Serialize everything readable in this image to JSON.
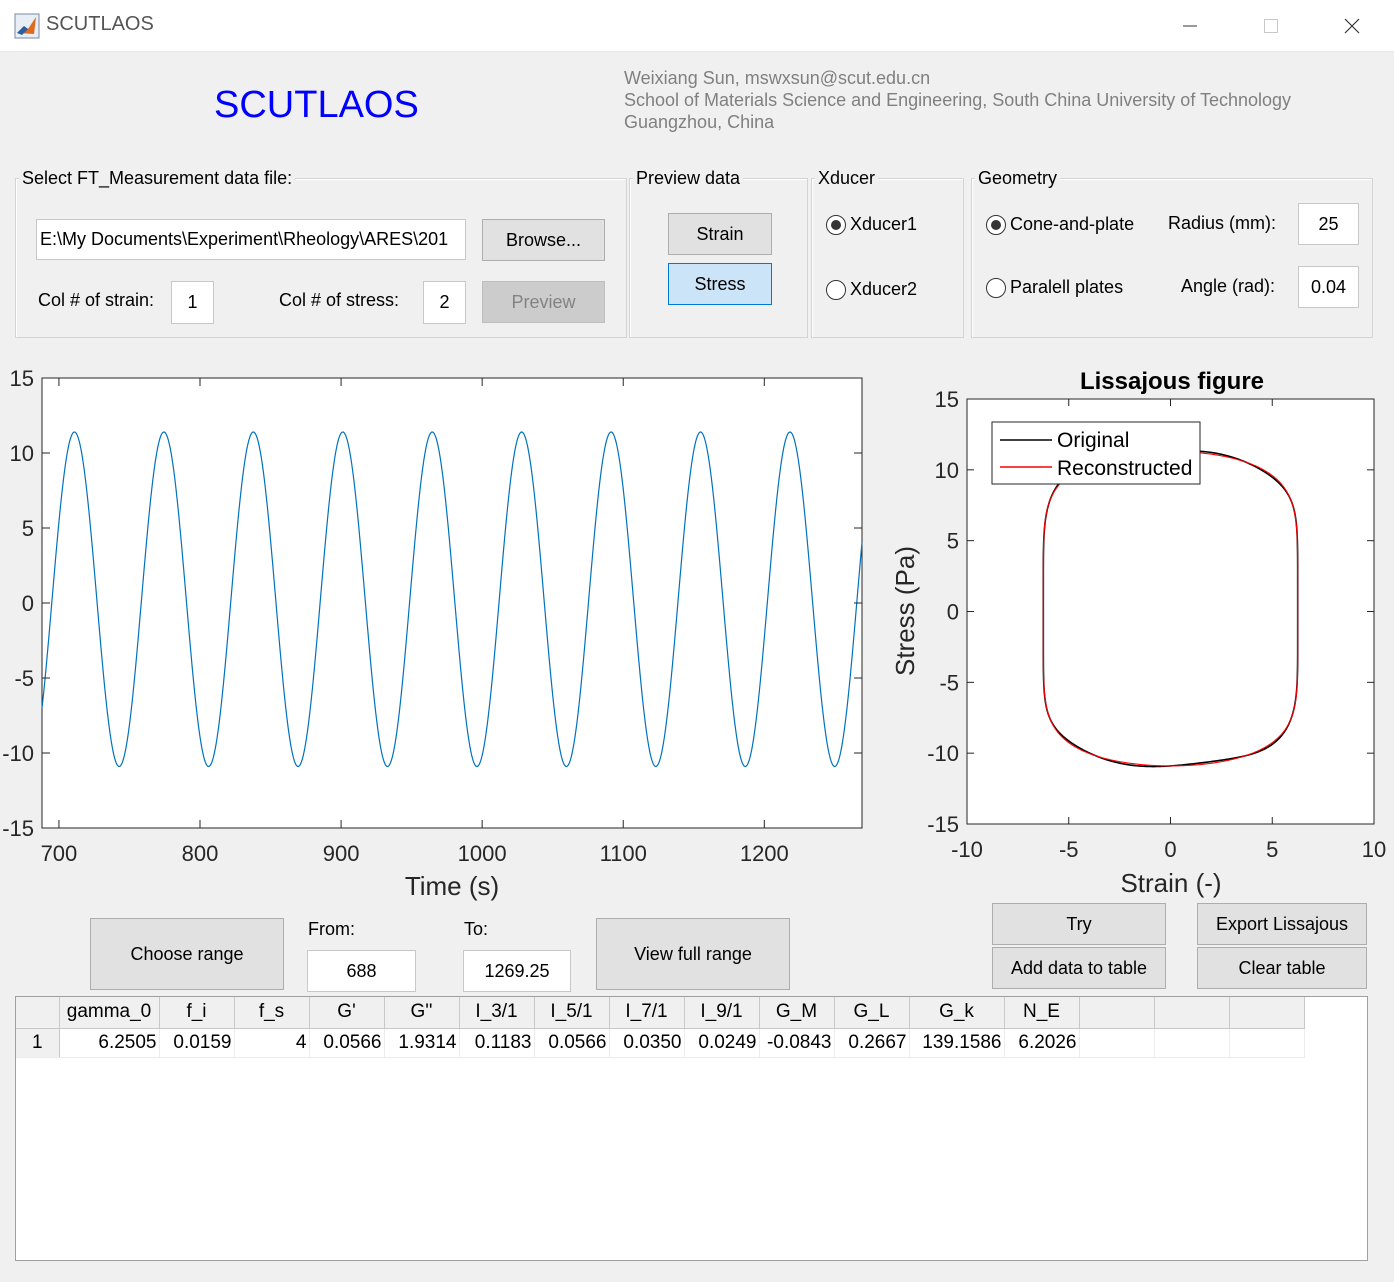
{
  "window": {
    "title": "SCUTLAOS"
  },
  "header": {
    "app_name": "SCUTLAOS",
    "author_line1": "Weixiang Sun, mswxsun@scut.edu.cn",
    "author_line2": "School of Materials Science and Engineering, South China University of Technology",
    "author_line3": "Guangzhou, China"
  },
  "file_panel": {
    "title": "Select FT_Measurement data file:",
    "path_value": "E:\\My Documents\\Experiment\\Rheology\\ARES\\201",
    "browse_label": "Browse...",
    "strain_col_label": "Col # of strain:",
    "strain_col_value": "1",
    "stress_col_label": "Col # of stress:",
    "stress_col_value": "2",
    "preview_label": "Preview"
  },
  "preview_panel": {
    "title": "Preview data",
    "strain_label": "Strain",
    "stress_label": "Stress",
    "selected": "Stress"
  },
  "xducer_panel": {
    "title": "Xducer",
    "option1": "Xducer1",
    "option2": "Xducer2",
    "selected": "Xducer1"
  },
  "geometry_panel": {
    "title": "Geometry",
    "option1": "Cone-and-plate",
    "option2": "Paralell plates",
    "selected": "Cone-and-plate",
    "radius_label": "Radius (mm):",
    "radius_value": "25",
    "angle_label": "Angle (rad):",
    "angle_value": "0.04"
  },
  "time_plot": {
    "xlabel": "Time (s)",
    "x_ticks": [
      "700",
      "800",
      "900",
      "1000",
      "1100",
      "1200"
    ],
    "y_ticks": [
      "15",
      "10",
      "5",
      "0",
      "-5",
      "-10",
      "-15"
    ]
  },
  "lissajous_plot": {
    "title": "Lissajous figure",
    "xlabel": "Strain (-)",
    "ylabel": "Stress (Pa)",
    "x_ticks": [
      "-10",
      "-5",
      "0",
      "5",
      "10"
    ],
    "y_ticks": [
      "15",
      "10",
      "5",
      "0",
      "-5",
      "-10",
      "-15"
    ],
    "legend": [
      "Original",
      "Reconstructed"
    ]
  },
  "range_controls": {
    "choose_range_label": "Choose range",
    "from_label": "From:",
    "from_value": "688",
    "to_label": "To:",
    "to_value": "1269.25",
    "view_full_label": "View full range"
  },
  "actions": {
    "try_label": "Try",
    "export_label": "Export Lissajous",
    "add_label": "Add data to table",
    "clear_label": "Clear table"
  },
  "results_table": {
    "columns": [
      "gamma_0",
      "f_i",
      "f_s",
      "G'",
      "G''",
      "I_3/1",
      "I_5/1",
      "I_7/1",
      "I_9/1",
      "G_M",
      "G_L",
      "G_k",
      "N_E",
      "",
      "",
      ""
    ],
    "rows": [
      {
        "index": "1",
        "cells": [
          "6.2505",
          "0.0159",
          "4",
          "0.0566",
          "1.9314",
          "0.1183",
          "0.0566",
          "0.0350",
          "0.0249",
          "-0.0843",
          "0.2667",
          "139.1586",
          "6.2026",
          "",
          "",
          ""
        ]
      }
    ]
  },
  "chart_data": [
    {
      "type": "line",
      "title": "",
      "xlabel": "Time (s)",
      "ylabel": "",
      "xlim": [
        688,
        1269.25
      ],
      "ylim": [
        -15,
        15
      ],
      "grid": false,
      "series": [
        {
          "color": "#0072bd",
          "shape": "periodic stress oscillation",
          "period": 63.4,
          "max": 11.4,
          "min": -10.9,
          "first_peak_x": 711,
          "first_trough_x": 743
        }
      ]
    },
    {
      "type": "line",
      "title": "Lissajous figure",
      "xlabel": "Strain (-)",
      "ylabel": "Stress (Pa)",
      "xlim": [
        -10,
        10
      ],
      "ylim": [
        -15,
        15
      ],
      "grid": false,
      "legend_position": "top-left",
      "series": [
        {
          "name": "Original",
          "color": "#000000",
          "strain_amplitude": 6.25,
          "stress_max": 11.3,
          "stress_min": -10.9
        },
        {
          "name": "Reconstructed",
          "color": "#ff0000",
          "strain_amplitude": 6.25,
          "stress_max": 11.3,
          "stress_min": -10.9
        }
      ]
    }
  ]
}
